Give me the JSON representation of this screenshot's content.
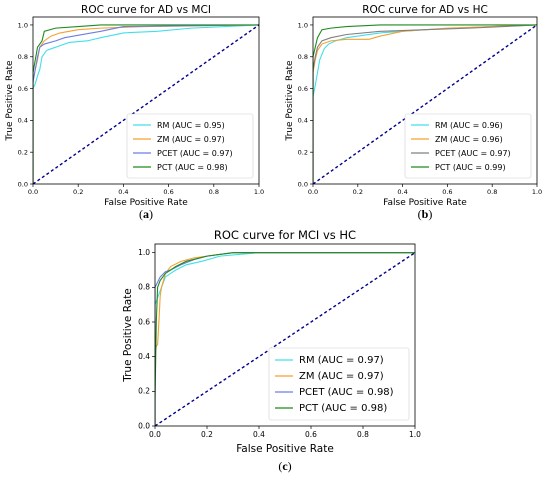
{
  "chart_data": [
    {
      "type": "line",
      "panel_label": "a",
      "title": "ROC curve for AD vs MCI",
      "xlabel": "False Positive Rate",
      "ylabel": "True Positive Rate",
      "xlim": [
        0,
        1
      ],
      "ylim": [
        0,
        1.05
      ],
      "xticks": [
        "0.0",
        "0.2",
        "0.4",
        "0.6",
        "0.8",
        "1.0"
      ],
      "yticks": [
        "0.0",
        "0.2",
        "0.4",
        "0.6",
        "0.8",
        "1.0"
      ],
      "legend_position": "lower-right",
      "series": [
        {
          "name": "RM (AUC = 0.95)",
          "color": "#40e0e8",
          "points": [
            [
              0,
              0
            ],
            [
              0,
              0.6
            ],
            [
              0.01,
              0.63
            ],
            [
              0.02,
              0.68
            ],
            [
              0.03,
              0.72
            ],
            [
              0.04,
              0.8
            ],
            [
              0.06,
              0.84
            ],
            [
              0.08,
              0.85
            ],
            [
              0.12,
              0.87
            ],
            [
              0.16,
              0.89
            ],
            [
              0.24,
              0.9
            ],
            [
              0.3,
              0.92
            ],
            [
              0.4,
              0.95
            ],
            [
              0.55,
              0.96
            ],
            [
              0.7,
              0.98
            ],
            [
              0.85,
              0.99
            ],
            [
              1,
              1
            ]
          ]
        },
        {
          "name": "ZM (AUC = 0.97)",
          "color": "#f5a030",
          "points": [
            [
              0,
              0
            ],
            [
              0,
              0.65
            ],
            [
              0.01,
              0.72
            ],
            [
              0.02,
              0.78
            ],
            [
              0.03,
              0.86
            ],
            [
              0.05,
              0.9
            ],
            [
              0.08,
              0.93
            ],
            [
              0.12,
              0.95
            ],
            [
              0.2,
              0.97
            ],
            [
              0.3,
              0.98
            ],
            [
              0.5,
              0.99
            ],
            [
              1,
              1
            ]
          ]
        },
        {
          "name": "PCET (AUC = 0.97)",
          "color": "#6b7fe0",
          "points": [
            [
              0,
              0
            ],
            [
              0,
              0.64
            ],
            [
              0.01,
              0.72
            ],
            [
              0.02,
              0.8
            ],
            [
              0.03,
              0.86
            ],
            [
              0.05,
              0.88
            ],
            [
              0.1,
              0.9
            ],
            [
              0.14,
              0.92
            ],
            [
              0.18,
              0.93
            ],
            [
              0.3,
              0.96
            ],
            [
              0.4,
              0.99
            ],
            [
              1,
              1
            ]
          ]
        },
        {
          "name": "PCT (AUC = 0.98)",
          "color": "#1f8a1f",
          "points": [
            [
              0,
              0
            ],
            [
              0,
              0.7
            ],
            [
              0.01,
              0.78
            ],
            [
              0.02,
              0.86
            ],
            [
              0.03,
              0.88
            ],
            [
              0.04,
              0.9
            ],
            [
              0.05,
              0.96
            ],
            [
              0.1,
              0.98
            ],
            [
              0.2,
              0.99
            ],
            [
              0.3,
              1.0
            ],
            [
              1,
              1
            ]
          ]
        },
        {
          "name": "",
          "color": "#00008b",
          "dashed": true,
          "points": [
            [
              0,
              0
            ],
            [
              1,
              1
            ]
          ]
        }
      ]
    },
    {
      "type": "line",
      "panel_label": "b",
      "title": "ROC curve for AD vs HC",
      "xlabel": "False Positive Rate",
      "ylabel": "True Positive Rate",
      "xlim": [
        0,
        1
      ],
      "ylim": [
        0,
        1.05
      ],
      "xticks": [
        "0.0",
        "0.2",
        "0.4",
        "0.6",
        "0.8",
        "1.0"
      ],
      "yticks": [
        "0.0",
        "0.2",
        "0.4",
        "0.6",
        "0.8",
        "1.0"
      ],
      "legend_position": "lower-right",
      "series": [
        {
          "name": "RM (AUC = 0.96)",
          "color": "#40e0e8",
          "points": [
            [
              0,
              0
            ],
            [
              0,
              0.55
            ],
            [
              0.01,
              0.62
            ],
            [
              0.02,
              0.7
            ],
            [
              0.03,
              0.78
            ],
            [
              0.05,
              0.85
            ],
            [
              0.07,
              0.88
            ],
            [
              0.1,
              0.9
            ],
            [
              0.15,
              0.92
            ],
            [
              0.3,
              0.95
            ],
            [
              0.5,
              0.97
            ],
            [
              0.8,
              0.99
            ],
            [
              1,
              1
            ]
          ]
        },
        {
          "name": "ZM (AUC = 0.96)",
          "color": "#f5a030",
          "points": [
            [
              0,
              0
            ],
            [
              0,
              0.7
            ],
            [
              0.01,
              0.78
            ],
            [
              0.02,
              0.84
            ],
            [
              0.04,
              0.88
            ],
            [
              0.08,
              0.9
            ],
            [
              0.15,
              0.91
            ],
            [
              0.25,
              0.91
            ],
            [
              0.3,
              0.93
            ],
            [
              0.4,
              0.96
            ],
            [
              0.6,
              0.98
            ],
            [
              1,
              1
            ]
          ]
        },
        {
          "name": "PCET (AUC = 0.97)",
          "color": "#808080",
          "points": [
            [
              0,
              0
            ],
            [
              0,
              0.72
            ],
            [
              0.01,
              0.8
            ],
            [
              0.02,
              0.86
            ],
            [
              0.04,
              0.9
            ],
            [
              0.08,
              0.92
            ],
            [
              0.15,
              0.94
            ],
            [
              0.3,
              0.96
            ],
            [
              0.5,
              0.97
            ],
            [
              0.7,
              0.98
            ],
            [
              1,
              1
            ]
          ]
        },
        {
          "name": "PCT (AUC = 0.99)",
          "color": "#1f8a1f",
          "points": [
            [
              0,
              0
            ],
            [
              0,
              0.8
            ],
            [
              0.01,
              0.86
            ],
            [
              0.02,
              0.92
            ],
            [
              0.04,
              0.97
            ],
            [
              0.08,
              0.98
            ],
            [
              0.15,
              0.99
            ],
            [
              0.3,
              1.0
            ],
            [
              1,
              1
            ]
          ]
        },
        {
          "name": "",
          "color": "#00008b",
          "dashed": true,
          "points": [
            [
              0,
              0
            ],
            [
              1,
              1
            ]
          ]
        }
      ]
    },
    {
      "type": "line",
      "panel_label": "c",
      "title": "ROC curve for MCI vs HC",
      "xlabel": "False Positive Rate",
      "ylabel": "True Positive Rate",
      "xlim": [
        0,
        1
      ],
      "ylim": [
        0,
        1.05
      ],
      "xticks": [
        "0.0",
        "0.2",
        "0.4",
        "0.6",
        "0.8",
        "1.0"
      ],
      "yticks": [
        "0.0",
        "0.2",
        "0.4",
        "0.6",
        "0.8",
        "1.0"
      ],
      "legend_position": "lower-right",
      "series": [
        {
          "name": "RM (AUC = 0.97)",
          "color": "#40e0e8",
          "points": [
            [
              0,
              0
            ],
            [
              0,
              0.7
            ],
            [
              0.01,
              0.74
            ],
            [
              0.02,
              0.78
            ],
            [
              0.03,
              0.82
            ],
            [
              0.04,
              0.86
            ],
            [
              0.06,
              0.88
            ],
            [
              0.08,
              0.9
            ],
            [
              0.12,
              0.93
            ],
            [
              0.18,
              0.95
            ],
            [
              0.25,
              0.98
            ],
            [
              0.4,
              1.0
            ],
            [
              1,
              1
            ]
          ]
        },
        {
          "name": "ZM (AUC = 0.97)",
          "color": "#f5a030",
          "points": [
            [
              0,
              0
            ],
            [
              0,
              0.42
            ],
            [
              0.005,
              0.46
            ],
            [
              0.01,
              0.47
            ],
            [
              0.015,
              0.6
            ],
            [
              0.02,
              0.75
            ],
            [
              0.025,
              0.8
            ],
            [
              0.04,
              0.88
            ],
            [
              0.06,
              0.92
            ],
            [
              0.1,
              0.95
            ],
            [
              0.15,
              0.97
            ],
            [
              0.2,
              0.98
            ],
            [
              0.3,
              1.0
            ],
            [
              1,
              1
            ]
          ]
        },
        {
          "name": "PCET (AUC = 0.98)",
          "color": "#6b7fe0",
          "points": [
            [
              0,
              0
            ],
            [
              0,
              0.8
            ],
            [
              0.01,
              0.83
            ],
            [
              0.02,
              0.86
            ],
            [
              0.04,
              0.89
            ],
            [
              0.06,
              0.9
            ],
            [
              0.1,
              0.93
            ],
            [
              0.15,
              0.96
            ],
            [
              0.2,
              0.98
            ],
            [
              0.3,
              1.0
            ],
            [
              1,
              1
            ]
          ]
        },
        {
          "name": "PCT (AUC = 0.98)",
          "color": "#1f8a1f",
          "points": [
            [
              0,
              0
            ],
            [
              0,
              0.15
            ],
            [
              0.005,
              0.6
            ],
            [
              0.01,
              0.8
            ],
            [
              0.02,
              0.84
            ],
            [
              0.04,
              0.88
            ],
            [
              0.06,
              0.9
            ],
            [
              0.08,
              0.92
            ],
            [
              0.12,
              0.95
            ],
            [
              0.2,
              0.98
            ],
            [
              0.3,
              1.0
            ],
            [
              1,
              1
            ]
          ]
        },
        {
          "name": "",
          "color": "#00008b",
          "dashed": true,
          "points": [
            [
              0,
              0
            ],
            [
              1,
              1
            ]
          ]
        }
      ]
    }
  ]
}
